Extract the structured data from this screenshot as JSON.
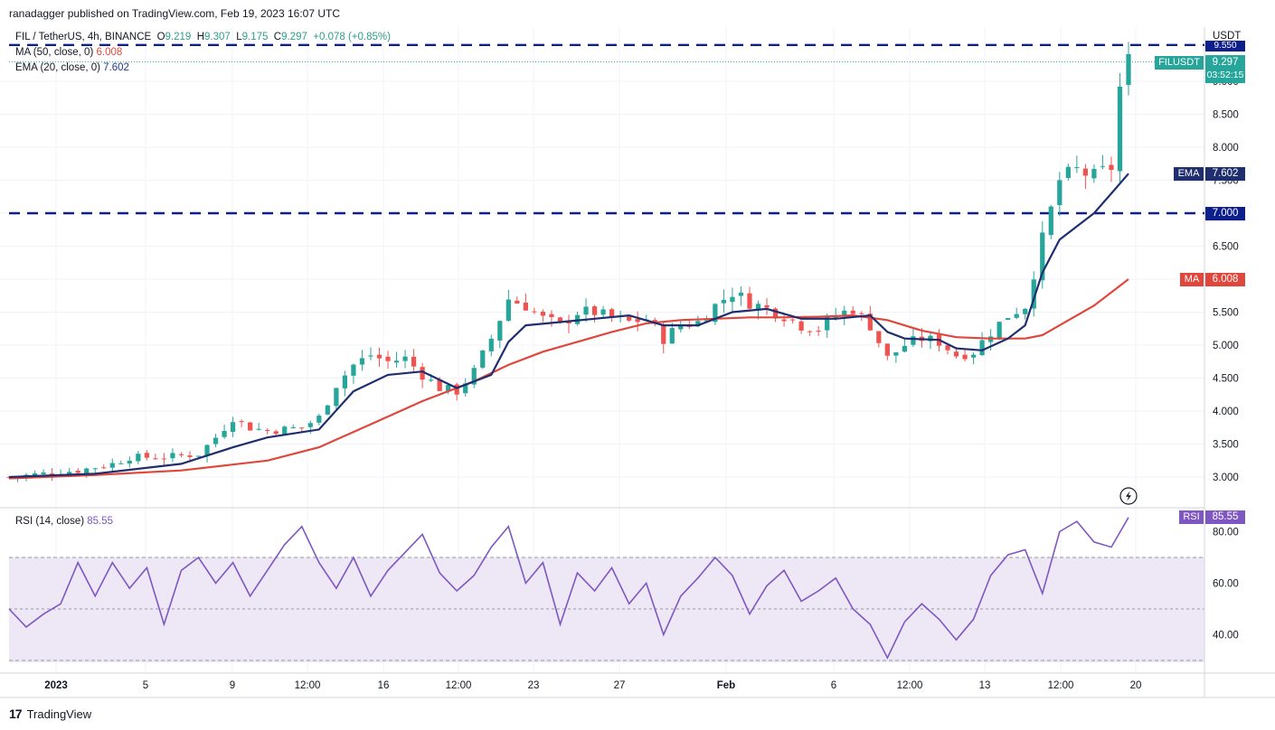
{
  "header": {
    "publisher_line": "ranadagger published on TradingView.com, Feb 19, 2023 16:07 UTC"
  },
  "legend": {
    "symbol": "FIL / TetherUS, 4h, BINANCE",
    "o_label": "O",
    "o_value": "9.219",
    "h_label": "H",
    "h_value": "9.307",
    "l_label": "L",
    "l_value": "9.175",
    "c_label": "C",
    "c_value": "9.297",
    "change": "+0.078 (+0.85%)",
    "ma_label": "MA (50, close, 0)",
    "ma_value": "6.008",
    "ema_label": "EMA (20, close, 0)",
    "ema_value": "7.602",
    "rsi_label": "RSI (14, close)",
    "rsi_value": "85.55"
  },
  "price_scale": {
    "currency": "USDT",
    "ticks": [
      "9.000",
      "8.500",
      "8.000",
      "7.500",
      "7.000",
      "6.500",
      "6.000",
      "5.500",
      "5.000",
      "4.500",
      "4.000",
      "3.500",
      "3.000"
    ],
    "last_price_tag": {
      "symbol": "FILUSDT",
      "price": "9.297",
      "countdown": "03:52:15"
    },
    "top_level_tag": "9.550",
    "ema_tag": {
      "label": "EMA",
      "value": "7.602"
    },
    "level_tag": "7.000",
    "ma_tag": {
      "label": "MA",
      "value": "6.008"
    }
  },
  "rsi_scale": {
    "ticks": [
      "80.00",
      "60.00",
      "40.00"
    ],
    "tag": {
      "label": "RSI",
      "value": "85.55"
    }
  },
  "time_axis": {
    "ticks": [
      "2023",
      "5",
      "9",
      "12:00",
      "16",
      "12:00",
      "23",
      "27",
      "Feb",
      "6",
      "12:00",
      "13",
      "12:00",
      "20"
    ]
  },
  "footer": {
    "brand": "TradingView"
  },
  "colors": {
    "up": "#26a69a",
    "down": "#ef5350",
    "ema": "#1e2e6e",
    "ma": "#e0473c",
    "rsi": "#7e57c2",
    "level": "#0d1f8c",
    "rsi_band": "#ede7f6"
  },
  "chart_data": [
    {
      "type": "candlestick",
      "title": "FIL / TetherUS, 4h, BINANCE",
      "ylabel": "USDT",
      "ylim": [
        2.75,
        9.6
      ],
      "x_start": "2022-12-31",
      "x_end": "2023-02-19",
      "interval": "4h",
      "horizontal_levels": [
        9.55,
        7.0
      ],
      "close_path": [
        [
          0,
          3.0
        ],
        [
          4,
          3.05
        ],
        [
          8,
          3.1
        ],
        [
          12,
          3.2
        ],
        [
          14,
          3.3
        ],
        [
          18,
          3.3
        ],
        [
          22,
          3.35
        ],
        [
          24,
          3.6
        ],
        [
          26,
          3.9
        ],
        [
          28,
          3.75
        ],
        [
          30,
          3.7
        ],
        [
          34,
          3.75
        ],
        [
          36,
          3.9
        ],
        [
          38,
          4.4
        ],
        [
          40,
          4.7
        ],
        [
          42,
          4.85
        ],
        [
          44,
          4.75
        ],
        [
          46,
          4.8
        ],
        [
          48,
          4.55
        ],
        [
          50,
          4.35
        ],
        [
          52,
          4.3
        ],
        [
          54,
          4.6
        ],
        [
          56,
          5.1
        ],
        [
          58,
          5.7
        ],
        [
          60,
          5.6
        ],
        [
          62,
          5.4
        ],
        [
          64,
          5.3
        ],
        [
          66,
          5.5
        ],
        [
          68,
          5.5
        ],
        [
          70,
          5.4
        ],
        [
          72,
          5.35
        ],
        [
          74,
          5.4
        ],
        [
          76,
          5.1
        ],
        [
          78,
          5.3
        ],
        [
          80,
          5.35
        ],
        [
          82,
          5.6
        ],
        [
          84,
          5.8
        ],
        [
          86,
          5.65
        ],
        [
          88,
          5.55
        ],
        [
          90,
          5.45
        ],
        [
          92,
          5.3
        ],
        [
          94,
          5.25
        ],
        [
          96,
          5.45
        ],
        [
          98,
          5.55
        ],
        [
          100,
          5.3
        ],
        [
          102,
          4.8
        ],
        [
          104,
          5.0
        ],
        [
          106,
          5.1
        ],
        [
          108,
          5.05
        ],
        [
          110,
          4.85
        ],
        [
          112,
          4.9
        ],
        [
          114,
          5.2
        ],
        [
          116,
          5.45
        ],
        [
          118,
          5.6
        ],
        [
          120,
          6.6
        ],
        [
          122,
          7.5
        ],
        [
          124,
          7.65
        ],
        [
          126,
          7.55
        ],
        [
          128,
          7.7
        ],
        [
          129,
          8.9
        ],
        [
          130,
          9.3
        ]
      ],
      "ma_50": [
        [
          0,
          2.98
        ],
        [
          10,
          3.03
        ],
        [
          20,
          3.1
        ],
        [
          30,
          3.25
        ],
        [
          36,
          3.45
        ],
        [
          42,
          3.8
        ],
        [
          48,
          4.15
        ],
        [
          54,
          4.45
        ],
        [
          58,
          4.7
        ],
        [
          62,
          4.9
        ],
        [
          66,
          5.05
        ],
        [
          70,
          5.2
        ],
        [
          74,
          5.33
        ],
        [
          78,
          5.38
        ],
        [
          82,
          5.4
        ],
        [
          86,
          5.42
        ],
        [
          90,
          5.42
        ],
        [
          94,
          5.43
        ],
        [
          98,
          5.45
        ],
        [
          102,
          5.38
        ],
        [
          106,
          5.22
        ],
        [
          110,
          5.12
        ],
        [
          114,
          5.1
        ],
        [
          118,
          5.1
        ],
        [
          120,
          5.15
        ],
        [
          122,
          5.3
        ],
        [
          126,
          5.6
        ],
        [
          130,
          6.0
        ]
      ],
      "ema_20": [
        [
          0,
          3.0
        ],
        [
          10,
          3.05
        ],
        [
          20,
          3.2
        ],
        [
          26,
          3.45
        ],
        [
          30,
          3.6
        ],
        [
          36,
          3.72
        ],
        [
          40,
          4.3
        ],
        [
          44,
          4.55
        ],
        [
          48,
          4.6
        ],
        [
          52,
          4.35
        ],
        [
          56,
          4.55
        ],
        [
          58,
          5.05
        ],
        [
          60,
          5.3
        ],
        [
          64,
          5.35
        ],
        [
          68,
          5.4
        ],
        [
          72,
          5.45
        ],
        [
          76,
          5.3
        ],
        [
          80,
          5.3
        ],
        [
          84,
          5.5
        ],
        [
          88,
          5.55
        ],
        [
          92,
          5.4
        ],
        [
          96,
          5.4
        ],
        [
          100,
          5.45
        ],
        [
          102,
          5.2
        ],
        [
          104,
          5.1
        ],
        [
          108,
          5.08
        ],
        [
          110,
          4.95
        ],
        [
          113,
          4.92
        ],
        [
          116,
          5.1
        ],
        [
          118,
          5.3
        ],
        [
          120,
          6.1
        ],
        [
          122,
          6.6
        ],
        [
          126,
          7.0
        ],
        [
          128,
          7.3
        ],
        [
          130,
          7.6
        ]
      ]
    },
    {
      "type": "line",
      "title": "RSI (14, close)",
      "ylim": [
        27,
        90
      ],
      "bands": {
        "upper": 70,
        "middle": 50,
        "lower": 30
      },
      "series": [
        {
          "name": "RSI (14, close)",
          "values": [
            [
              0,
              50
            ],
            [
              2,
              43
            ],
            [
              4,
              48
            ],
            [
              6,
              52
            ],
            [
              8,
              68
            ],
            [
              10,
              55
            ],
            [
              12,
              68
            ],
            [
              14,
              58
            ],
            [
              16,
              66
            ],
            [
              18,
              44
            ],
            [
              20,
              65
            ],
            [
              22,
              70
            ],
            [
              24,
              60
            ],
            [
              26,
              68
            ],
            [
              28,
              55
            ],
            [
              30,
              65
            ],
            [
              32,
              75
            ],
            [
              34,
              82
            ],
            [
              36,
              68
            ],
            [
              38,
              58
            ],
            [
              40,
              70
            ],
            [
              42,
              55
            ],
            [
              44,
              65
            ],
            [
              46,
              72
            ],
            [
              48,
              79
            ],
            [
              50,
              64
            ],
            [
              52,
              57
            ],
            [
              54,
              63
            ],
            [
              56,
              74
            ],
            [
              58,
              82
            ],
            [
              60,
              60
            ],
            [
              62,
              68
            ],
            [
              64,
              44
            ],
            [
              66,
              64
            ],
            [
              68,
              57
            ],
            [
              70,
              66
            ],
            [
              72,
              52
            ],
            [
              74,
              60
            ],
            [
              76,
              40
            ],
            [
              78,
              55
            ],
            [
              80,
              62
            ],
            [
              82,
              70
            ],
            [
              84,
              63
            ],
            [
              86,
              48
            ],
            [
              88,
              59
            ],
            [
              90,
              65
            ],
            [
              92,
              53
            ],
            [
              94,
              57
            ],
            [
              96,
              62
            ],
            [
              98,
              50
            ],
            [
              100,
              44
            ],
            [
              102,
              31
            ],
            [
              104,
              45
            ],
            [
              106,
              52
            ],
            [
              108,
              46
            ],
            [
              110,
              38
            ],
            [
              112,
              46
            ],
            [
              114,
              63
            ],
            [
              116,
              71
            ],
            [
              118,
              73
            ],
            [
              120,
              56
            ],
            [
              122,
              80
            ],
            [
              124,
              84
            ],
            [
              126,
              76
            ],
            [
              128,
              74
            ],
            [
              130,
              85.55
            ]
          ]
        }
      ]
    }
  ]
}
